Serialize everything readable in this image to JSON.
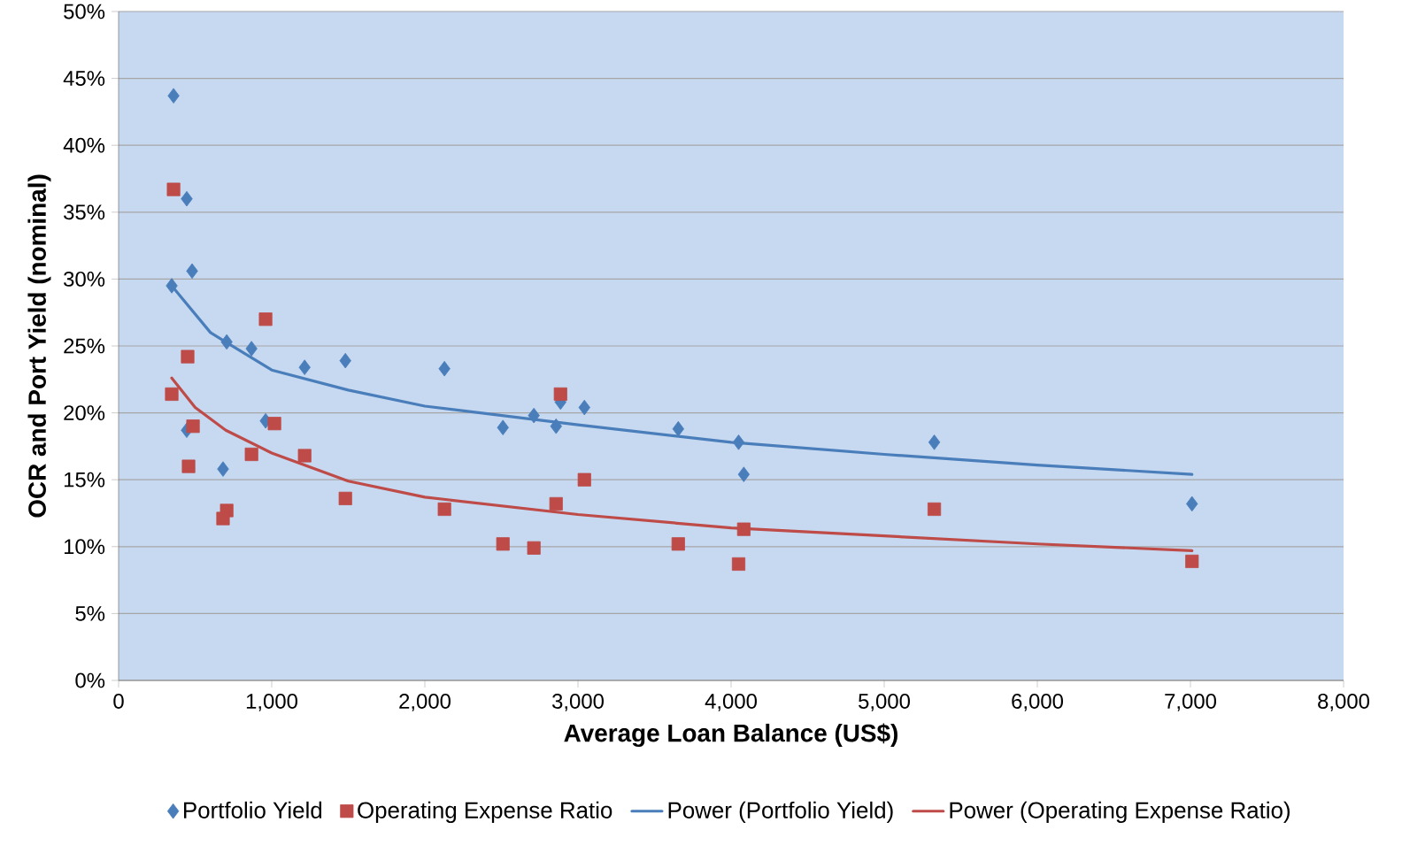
{
  "chart_data": {
    "type": "scatter",
    "xlabel": "Average Loan Balance (US$)",
    "ylabel": "OCR and Port Yield (nominal)",
    "xlim": [
      0,
      8000
    ],
    "ylim": [
      0,
      50
    ],
    "xticks": [
      0,
      {
        "value": 1000,
        "label": "1,000"
      },
      {
        "value": 2000,
        "label": "2,000"
      },
      {
        "value": 3000,
        "label": "3,000"
      },
      {
        "value": 4000,
        "label": "4,000"
      },
      {
        "value": 5000,
        "label": "5,000"
      },
      {
        "value": 6000,
        "label": "6,000"
      },
      {
        "value": 7000,
        "label": "7,000"
      },
      {
        "value": 8000,
        "label": "8,000"
      }
    ],
    "yticks": [
      {
        "value": 0,
        "label": "0%"
      },
      {
        "value": 5,
        "label": "5%"
      },
      {
        "value": 10,
        "label": "10%"
      },
      {
        "value": 15,
        "label": "15%"
      },
      {
        "value": 20,
        "label": "20%"
      },
      {
        "value": 25,
        "label": "25%"
      },
      {
        "value": 30,
        "label": "30%"
      },
      {
        "value": 35,
        "label": "35%"
      },
      {
        "value": 40,
        "label": "40%"
      },
      {
        "value": 45,
        "label": "45%"
      },
      {
        "value": 50,
        "label": "50%"
      }
    ],
    "grid": "y",
    "legend": "bottom",
    "series": [
      {
        "name": "Portfolio Yield",
        "marker": "diamond",
        "color": "#4a7ebb",
        "x": [
          359,
          445,
          480,
          347,
          706,
          868,
          1215,
          1481,
          2128,
          960,
          445,
          682,
          2510,
          2712,
          2857,
          2886,
          3042,
          3655,
          4049,
          4083,
          5327,
          7010
        ],
        "values": [
          43.7,
          36.0,
          30.6,
          29.5,
          25.3,
          24.8,
          23.4,
          23.9,
          23.3,
          19.4,
          18.7,
          15.8,
          18.9,
          19.8,
          19.0,
          20.8,
          20.4,
          18.8,
          17.8,
          15.4,
          17.8,
          13.2
        ]
      },
      {
        "name": "Operating Expense Ratio",
        "marker": "square",
        "color": "#be4b48",
        "x": [
          359,
          960,
          451,
          347,
          486,
          1018,
          457,
          868,
          1215,
          706,
          682,
          1481,
          2128,
          2510,
          2712,
          2857,
          2886,
          3042,
          3655,
          4049,
          4083,
          5327,
          7010
        ],
        "values": [
          36.7,
          27.0,
          24.2,
          21.4,
          19.0,
          19.2,
          16.0,
          16.9,
          16.8,
          12.7,
          12.1,
          13.6,
          12.8,
          10.2,
          9.9,
          13.2,
          21.4,
          15.0,
          10.2,
          8.7,
          11.3,
          12.8,
          8.9
        ]
      },
      {
        "name": "Power (Portfolio Yield)",
        "type": "line",
        "marker": "none",
        "color": "#4a7ebb",
        "x": [
          347,
          600,
          1000,
          1500,
          2000,
          3000,
          4000,
          5000,
          6000,
          7010
        ],
        "values": [
          29.5,
          26.0,
          23.2,
          21.7,
          20.5,
          19.1,
          17.8,
          16.9,
          16.1,
          15.4
        ]
      },
      {
        "name": "Power (Operating Expense Ratio)",
        "type": "line",
        "marker": "none",
        "color": "#be4b48",
        "x": [
          347,
          500,
          700,
          1000,
          1500,
          2000,
          3000,
          4000,
          5000,
          6000,
          7010
        ],
        "values": [
          22.6,
          20.4,
          18.7,
          17.0,
          14.9,
          13.7,
          12.4,
          11.4,
          10.8,
          10.2,
          9.7
        ]
      }
    ]
  }
}
